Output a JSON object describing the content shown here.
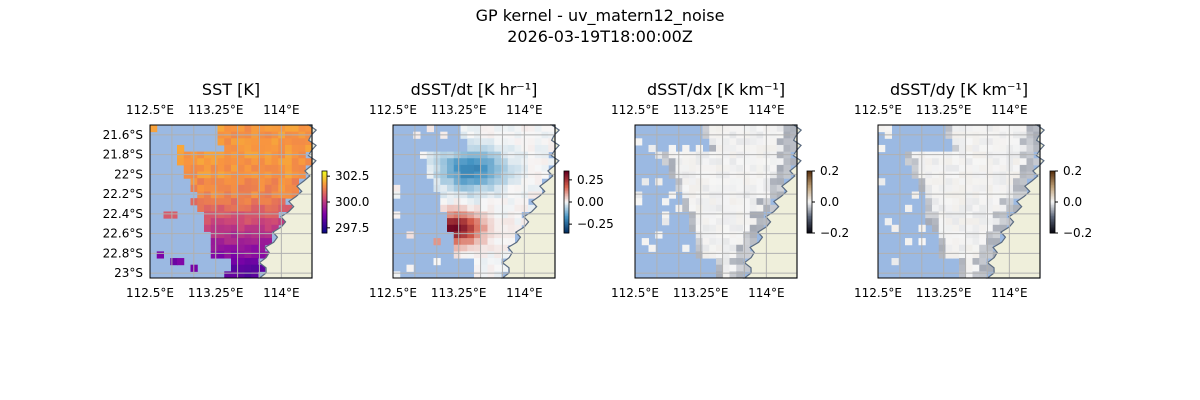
{
  "figure": {
    "title": "GP kernel - uv_matern12_noise",
    "subtitle": "2026-03-19T18:00:00Z"
  },
  "colors": {
    "ocean_mask": "#9bb9e2",
    "land": "#efefdb",
    "coastline": "#5b6b80",
    "gridline": "#b0b0b0"
  },
  "chart_data": [
    {
      "type": "heatmap",
      "title": "SST [K]",
      "colormap": "plasma-like (dark purple → orange → yellow)",
      "xticks": [
        "112.5°E",
        "113.25°E",
        "114°E"
      ],
      "xtick_values": [
        112.5,
        113.25,
        114.0
      ],
      "yticks": [
        "21.6°S",
        "21.8°S",
        "22°S",
        "22.2°S",
        "22.4°S",
        "22.6°S",
        "22.8°S",
        "23°S"
      ],
      "ytick_values": [
        -21.6,
        -21.8,
        -22.0,
        -22.2,
        -22.4,
        -22.6,
        -22.8,
        -23.0
      ],
      "show_yticks": true,
      "xlim": [
        112.5,
        114.35
      ],
      "ylim": [
        -23.05,
        -21.5
      ],
      "grid": true,
      "colorbar": {
        "ticks": [
          "302.5",
          "300.0",
          "297.5"
        ],
        "values": [
          302.5,
          300.0,
          297.5
        ],
        "range": [
          297.0,
          303.0
        ]
      },
      "field_range": [
        298.5,
        301.8
      ]
    },
    {
      "type": "heatmap",
      "title": "dSST/dt [K hr⁻¹]",
      "colormap": "RdBu_r (blue → white → red)",
      "xticks": [
        "112.5°E",
        "113.25°E",
        "114°E"
      ],
      "xtick_values": [
        112.5,
        113.25,
        114.0
      ],
      "show_yticks": false,
      "xlim": [
        112.5,
        114.35
      ],
      "ylim": [
        -23.05,
        -21.5
      ],
      "grid": true,
      "colorbar": {
        "ticks": [
          "0.25",
          "0.00",
          "−0.25"
        ],
        "values": [
          0.25,
          0.0,
          -0.25
        ],
        "range": [
          -0.35,
          0.35
        ]
      },
      "field_range": [
        -0.3,
        0.35
      ]
    },
    {
      "type": "heatmap",
      "title": "dSST/dx [K km⁻¹]",
      "colormap": "diverging dark (black → white → brown)",
      "xticks": [
        "112.5°E",
        "113.25°E",
        "114°E"
      ],
      "xtick_values": [
        112.5,
        113.25,
        114.0
      ],
      "show_yticks": false,
      "xlim": [
        112.5,
        114.35
      ],
      "ylim": [
        -23.05,
        -21.5
      ],
      "grid": true,
      "colorbar": {
        "ticks": [
          "0.2",
          "0.0",
          "−0.2"
        ],
        "values": [
          0.2,
          0.0,
          -0.2
        ],
        "range": [
          -0.2,
          0.2
        ]
      },
      "field_range": [
        -0.08,
        0.08
      ]
    },
    {
      "type": "heatmap",
      "title": "dSST/dy [K km⁻¹]",
      "colormap": "diverging dark (black → white → brown)",
      "xticks": [
        "112.5°E",
        "113.25°E",
        "114°E"
      ],
      "xtick_values": [
        112.5,
        113.25,
        114.0
      ],
      "show_yticks": false,
      "xlim": [
        112.5,
        114.35
      ],
      "ylim": [
        -23.05,
        -21.5
      ],
      "grid": true,
      "colorbar": {
        "ticks": [
          "0.2",
          "0.0",
          "−0.2"
        ],
        "values": [
          0.2,
          0.0,
          -0.2
        ],
        "range": [
          -0.2,
          0.2
        ]
      },
      "field_range": [
        -0.08,
        0.08
      ]
    }
  ]
}
